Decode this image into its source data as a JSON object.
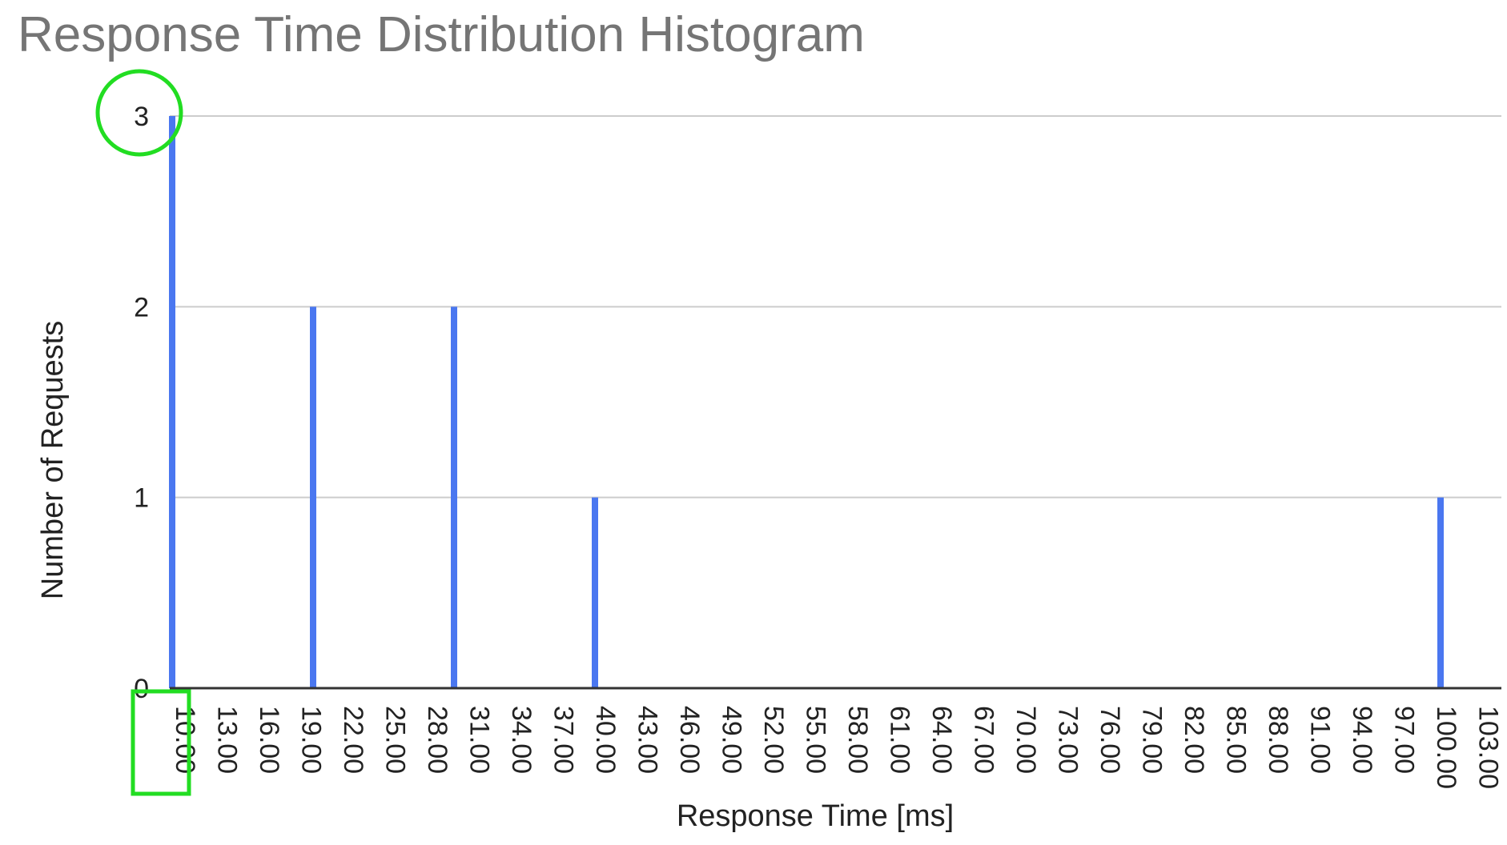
{
  "chart_data": {
    "type": "bar",
    "title": "Response Time Distribution Histogram",
    "xlabel": "Response Time [ms]",
    "ylabel": "Number of Requests",
    "x_tick_labels": [
      "10.00",
      "13.00",
      "16.00",
      "19.00",
      "22.00",
      "25.00",
      "28.00",
      "31.00",
      "34.00",
      "37.00",
      "40.00",
      "43.00",
      "46.00",
      "49.00",
      "52.00",
      "55.00",
      "58.00",
      "61.00",
      "64.00",
      "67.00",
      "70.00",
      "73.00",
      "76.00",
      "79.00",
      "82.00",
      "85.00",
      "88.00",
      "91.00",
      "94.00",
      "97.00",
      "100.00",
      "103.00"
    ],
    "y_ticks": [
      0,
      1,
      2,
      3
    ],
    "ylim": [
      0,
      3
    ],
    "xlim": [
      10,
      104
    ],
    "points": [
      {
        "x": 10,
        "y": 3
      },
      {
        "x": 20,
        "y": 2
      },
      {
        "x": 30,
        "y": 2
      },
      {
        "x": 40,
        "y": 1
      },
      {
        "x": 100,
        "y": 1
      }
    ],
    "bar_color": "#4a77f0",
    "grid": true,
    "highlights": [
      {
        "shape": "circle",
        "target": "y-tick-3",
        "color": "#22dd22"
      },
      {
        "shape": "rectangle",
        "target": "x-tick-10.00",
        "color": "#22dd22"
      }
    ]
  }
}
